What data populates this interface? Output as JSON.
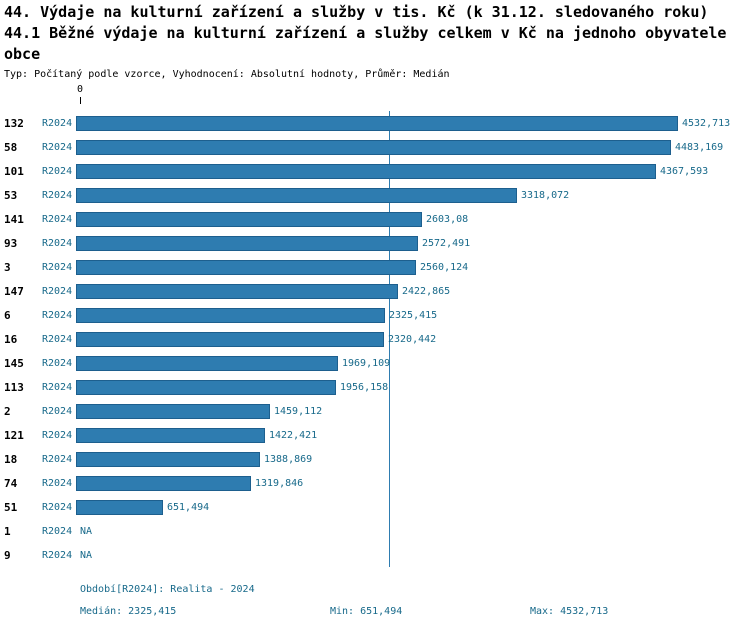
{
  "chart_data": {
    "type": "bar",
    "orientation": "horizontal",
    "title_line1": "44. Výdaje na kulturní zařízení a služby v tis. Kč (k 31.12. sledovaného roku)",
    "title_line2": "44.1 Běžné výdaje na kulturní zařízení a služby celkem v Kč na jednoho obyvatele obce",
    "subtitle": "Typ: Počítaný podle vzorce, Vyhodnocení: Absolutní hodnoty, Průměr: Medián",
    "series_label": "R2024",
    "x_axis": {
      "zero_label": "0",
      "min": 0,
      "max": 4532.713
    },
    "median_value": 2325.415,
    "grid": false,
    "legend": false,
    "rows": [
      {
        "id": "132",
        "period": "R2024",
        "value": 4532.713,
        "label": "4532,713"
      },
      {
        "id": "58",
        "period": "R2024",
        "value": 4483.169,
        "label": "4483,169"
      },
      {
        "id": "101",
        "period": "R2024",
        "value": 4367.593,
        "label": "4367,593"
      },
      {
        "id": "53",
        "period": "R2024",
        "value": 3318.072,
        "label": "3318,072"
      },
      {
        "id": "141",
        "period": "R2024",
        "value": 2603.08,
        "label": "2603,08"
      },
      {
        "id": "93",
        "period": "R2024",
        "value": 2572.491,
        "label": "2572,491"
      },
      {
        "id": "3",
        "period": "R2024",
        "value": 2560.124,
        "label": "2560,124"
      },
      {
        "id": "147",
        "period": "R2024",
        "value": 2422.865,
        "label": "2422,865"
      },
      {
        "id": "6",
        "period": "R2024",
        "value": 2325.415,
        "label": "2325,415"
      },
      {
        "id": "16",
        "period": "R2024",
        "value": 2320.442,
        "label": "2320,442"
      },
      {
        "id": "145",
        "period": "R2024",
        "value": 1969.109,
        "label": "1969,109"
      },
      {
        "id": "113",
        "period": "R2024",
        "value": 1956.158,
        "label": "1956,158"
      },
      {
        "id": "2",
        "period": "R2024",
        "value": 1459.112,
        "label": "1459,112"
      },
      {
        "id": "121",
        "period": "R2024",
        "value": 1422.421,
        "label": "1422,421"
      },
      {
        "id": "18",
        "period": "R2024",
        "value": 1388.869,
        "label": "1388,869"
      },
      {
        "id": "74",
        "period": "R2024",
        "value": 1319.846,
        "label": "1319,846"
      },
      {
        "id": "51",
        "period": "R2024",
        "value": 651.494,
        "label": "651,494"
      },
      {
        "id": "1",
        "period": "R2024",
        "value": null,
        "label": "NA"
      },
      {
        "id": "9",
        "period": "R2024",
        "value": null,
        "label": "NA"
      }
    ]
  },
  "footer": {
    "period": "Období[R2024]: Realita - 2024",
    "median": "Medián: 2325,415",
    "min": "Min: 651,494",
    "max": "Max: 4532,713"
  },
  "colors": {
    "bar_fill": "#2e7cb0",
    "bar_border": "#1d5f8e",
    "accent_text": "#17698a"
  }
}
